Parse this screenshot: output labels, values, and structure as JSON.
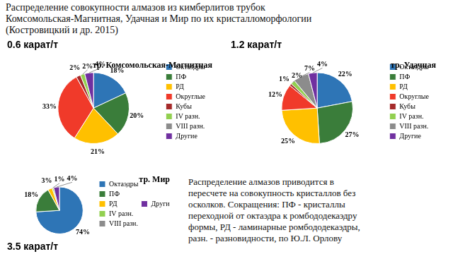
{
  "title": [
    "Распределение совокупности алмазов из кимберлитов трубок",
    "Комсомольская-Магнитная, Удачная и Мир по их кристалломорфологии",
    "(Костровицкий и др. 2015)"
  ],
  "note": [
    "Распределение алмазов приводится в",
    "пересчете на совокупность кристаллов без",
    "осколков. Сокращения: ПФ - кристаллы",
    "переходной от октаэдра к ромбододекаэдру",
    "формы, РД - ламинарные ромбододекаэдры,",
    "разн. - разновидности, по Ю.Л. Орлову"
  ],
  "chart_data": [
    {
      "type": "pie",
      "title": "тр. Комсомольская-Магнитная",
      "annotation": "0.6 карат/т",
      "categories": [
        "Октаэдры",
        "ПФ",
        "РД",
        "Округлые",
        "Кубы",
        "IV разн.",
        "VIII разн.",
        "Другие"
      ],
      "values": [
        18,
        20,
        21,
        33,
        2,
        2,
        null,
        4
      ],
      "value_labels": [
        "18%",
        "20%",
        "21%",
        "33%",
        "2%",
        "2%",
        null,
        "4%"
      ],
      "colors": [
        "#2e75b6",
        "#3a7d3a",
        "#ffc000",
        "#f03a2a",
        "#a52a2a",
        "#92d050",
        "#8c8c8c",
        "#7030a0"
      ],
      "legend": "right",
      "data_labels": true
    },
    {
      "type": "pie",
      "title": "тр. Удачная",
      "annotation": "1.2 карат/т",
      "categories": [
        "Октаэдры",
        "ПФ",
        "РД",
        "Округлые",
        "Кубы",
        "IV разн.",
        "VIII разн.",
        "Другие"
      ],
      "values": [
        22,
        27,
        25,
        12,
        1,
        2,
        7,
        4
      ],
      "value_labels": [
        "22%",
        "27%",
        "25%",
        "12%",
        "1%",
        "2%",
        "7%",
        "4%"
      ],
      "colors": [
        "#2e75b6",
        "#3a7d3a",
        "#ffc000",
        "#f03a2a",
        "#a52a2a",
        "#92d050",
        "#8c8c8c",
        "#7030a0"
      ],
      "legend": "right",
      "data_labels": true
    },
    {
      "type": "pie",
      "title": "тр. Мир",
      "annotation": "3.5 карат/т",
      "categories": [
        "Октаэдры",
        "ПФ",
        "РД",
        "IV разн.",
        "VIII разн.",
        "Другие"
      ],
      "values": [
        74,
        18,
        3,
        1,
        null,
        4
      ],
      "value_labels": [
        "74%",
        "18%",
        "3%",
        "1%",
        null,
        "4%"
      ],
      "colors": [
        "#2e75b6",
        "#3a7d3a",
        "#ffc000",
        "#92d050",
        "#8c8c8c",
        "#7030a0"
      ],
      "legend": "right",
      "data_labels": true
    }
  ]
}
